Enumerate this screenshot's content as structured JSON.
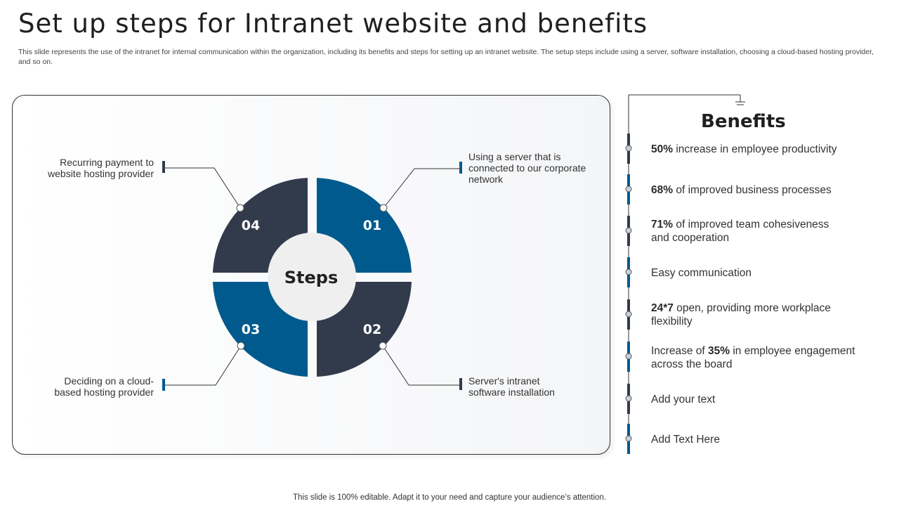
{
  "title": "Set up steps for Intranet website and benefits",
  "subtitle": "This slide represents the use of the intranet for internal communication within the organization, including its benefits and steps for setting up an intranet website. The setup steps include using a server, software installation, choosing a cloud-based hosting provider, and so on.",
  "diagram": {
    "center_label": "Steps",
    "steps": [
      {
        "number": "01",
        "label": "Using a server that is connected to our corporate network",
        "color": "#005a8d"
      },
      {
        "number": "02",
        "label": "Server's intranet software installation",
        "color": "#323b4c"
      },
      {
        "number": "03",
        "label": "Deciding on a cloud-based hosting provider",
        "color": "#005a8d"
      },
      {
        "number": "04",
        "label": "Recurring payment to website hosting provider",
        "color": "#323b4c"
      }
    ]
  },
  "benefits": {
    "title": "Benefits",
    "items": [
      {
        "bold": "50%",
        "text_before": "",
        "text_after": " increase in employee productivity"
      },
      {
        "bold": "68%",
        "text_before": "",
        "text_after": " of improved business processes"
      },
      {
        "bold": "71%",
        "text_before": "",
        "text_after": " of improved team cohesiveness and cooperation"
      },
      {
        "bold": "",
        "text_before": "",
        "text_after": "Easy communication"
      },
      {
        "bold": "24*7",
        "text_before": "",
        "text_after": " open, providing more workplace flexibility"
      },
      {
        "bold": "35%",
        "text_before": "Increase  of ",
        "text_after": " in employee engagement across the board"
      },
      {
        "bold": "",
        "text_before": "",
        "text_after": "Add your text"
      },
      {
        "bold": "",
        "text_before": "",
        "text_after": "Add Text Here"
      }
    ]
  },
  "colors": {
    "blue": "#005a8d",
    "navy": "#323b4c"
  },
  "footer": "This slide is 100% editable. Adapt it to your need and capture your audience’s attention."
}
